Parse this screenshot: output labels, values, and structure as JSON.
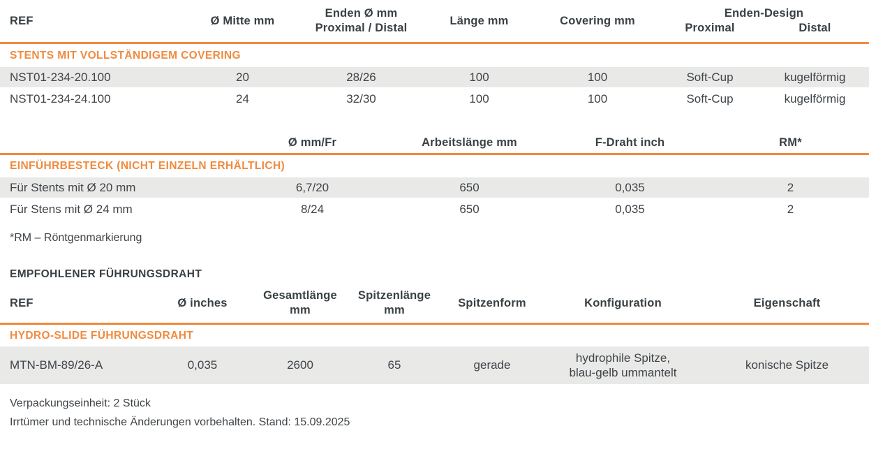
{
  "colors": {
    "accent_orange": "#f08a3e",
    "row_gray": "#e9e9e8",
    "text_dark": "#3f4448"
  },
  "stent_table": {
    "headers": {
      "ref": "REF",
      "mitte": "Ø Mitte mm",
      "enden_line1": "Enden Ø mm",
      "enden_line2": "Proximal / Distal",
      "laenge": "Länge mm",
      "covering": "Covering mm",
      "design_group": "Enden-Design",
      "design_proximal": "Proximal",
      "design_distal": "Distal"
    },
    "section_title": "STENTS MIT VOLLSTÄNDIGEM COVERING",
    "rows": [
      {
        "ref": "NST01-234-20.100",
        "mitte": "20",
        "enden": "28/26",
        "laenge": "100",
        "covering": "100",
        "proximal": "Soft-Cup",
        "distal": "kugelförmig"
      },
      {
        "ref": "NST01-234-24.100",
        "mitte": "24",
        "enden": "32/30",
        "laenge": "100",
        "covering": "100",
        "proximal": "Soft-Cup",
        "distal": "kugelförmig"
      }
    ]
  },
  "introducer_table": {
    "headers": {
      "diameter": "Ø mm/Fr",
      "working_length": "Arbeitslänge mm",
      "f_wire": "F-Draht inch",
      "rm": "RM*"
    },
    "section_title": "EINFÜHRBESTECK (NICHT EINZELN ERHÄLTLICH)",
    "rows": [
      {
        "label": "Für Stents mit Ø 20 mm",
        "diameter": "6,7/20",
        "working_length": "650",
        "f_wire": "0,035",
        "rm": "2"
      },
      {
        "label": "Für Stens mit Ø 24 mm",
        "diameter": "8/24",
        "working_length": "650",
        "f_wire": "0,035",
        "rm": "2"
      }
    ],
    "footnote": "*RM – Röntgenmarkierung"
  },
  "guidewire_table": {
    "title": "EMPFOHLENER FÜHRUNGSDRAHT",
    "headers": {
      "ref": "REF",
      "diameter": "Ø inches",
      "total_line1": "Gesamtlänge",
      "total_line2": "mm",
      "tip_len_line1": "Spitzenlänge",
      "tip_len_line2": "mm",
      "tip_shape": "Spitzenform",
      "configuration": "Konfiguration",
      "property": "Eigenschaft"
    },
    "section_title": "HYDRO-SLIDE FÜHRUNGSDRAHT",
    "rows": [
      {
        "ref": "MTN-BM-89/26-A",
        "diameter": "0,035",
        "total_length": "2600",
        "tip_length": "65",
        "tip_shape": "gerade",
        "config_line1": "hydrophile Spitze,",
        "config_line2": "blau-gelb ummantelt",
        "property": "konische Spitze"
      }
    ]
  },
  "footer": {
    "packaging": "Verpackungseinheit: 2 Stück",
    "disclaimer": "Irrtümer und technische Änderungen vorbehalten. Stand: 15.09.2025"
  }
}
